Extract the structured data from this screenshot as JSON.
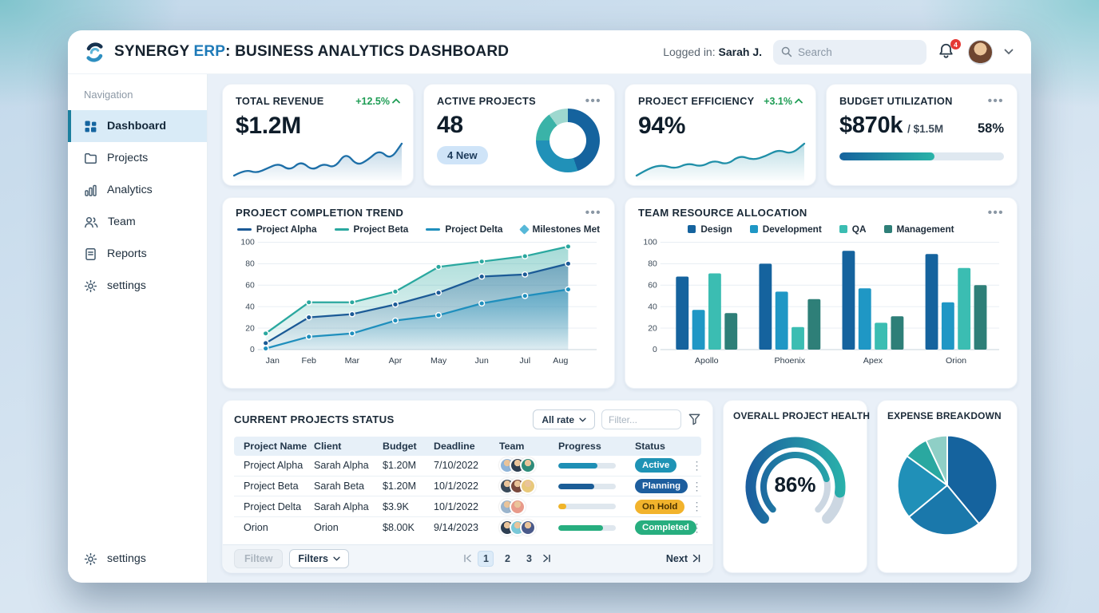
{
  "header": {
    "brand_name": "SYNERGY ",
    "brand_accent": "ERP",
    "title_suffix": ": BUSINESS ANALYTICS DASHBOARD",
    "logged_in_label": "Logged in: ",
    "user_name": "Sarah J.",
    "search_placeholder": "Search",
    "notification_count": "4",
    "accent_color": "#1e7ab8"
  },
  "sidebar": {
    "section_label": "Navigation",
    "items": [
      {
        "label": "Dashboard",
        "icon": "dashboard-grid-icon",
        "active": true
      },
      {
        "label": "Projects",
        "icon": "folder-icon",
        "active": false
      },
      {
        "label": "Analytics",
        "icon": "bar-chart-icon",
        "active": false
      },
      {
        "label": "Team",
        "icon": "people-icon",
        "active": false
      },
      {
        "label": "Reports",
        "icon": "document-icon",
        "active": false
      },
      {
        "label": "settings",
        "icon": "gear-icon",
        "active": false
      }
    ],
    "footer_item": {
      "label": "settings",
      "icon": "gear-icon"
    }
  },
  "kpis": {
    "revenue": {
      "title": "TOTAL REVENUE",
      "delta": "+12.5%",
      "value": "$1.2M"
    },
    "projects": {
      "title": "ACTIVE PROJECTS",
      "value": "48",
      "badge": "4 New"
    },
    "efficiency": {
      "title": "PROJECT EFFICIENCY",
      "delta": "+3.1%",
      "value": "94%"
    },
    "budget": {
      "title": "BUDGET UTILIZATION",
      "value": "$870k",
      "of_label": "/ $1.5M",
      "percent_label": "58%",
      "percent": 58
    }
  },
  "trend_card": {
    "title": "PROJECT COMPLETION TREND"
  },
  "team_card": {
    "title": "TEAM RESOURCE ALLOCATION"
  },
  "table": {
    "title": "CURRENT PROJECTS STATUS",
    "rate_dropdown": "All rate",
    "filter_placeholder": "Filter...",
    "columns": [
      "Project Name",
      "Client",
      "Budget",
      "Deadline",
      "Team",
      "Progress",
      "Status"
    ],
    "rows": [
      {
        "name": "Project Alpha",
        "client": "Sarah Alpha",
        "budget": "$1.20M",
        "deadline": "7/10/2022",
        "team_count": 3,
        "avatar_colors": [
          "#8fb4d8",
          "#2e3f52",
          "#2e8b7a"
        ],
        "progress": 68,
        "progress_color": "#1e8fb5",
        "status": "Active",
        "status_bg": "#1e93b5",
        "status_fg": "#ffffff"
      },
      {
        "name": "Project Beta",
        "client": "Sarah Beta",
        "budget": "$1.20M",
        "deadline": "10/1/2022",
        "team_count": 3,
        "avatar_colors": [
          "#3a4a5a",
          "#7a4a3e",
          "#e8c87a"
        ],
        "progress": 62,
        "progress_color": "#1b5d97",
        "status": "Planning",
        "status_bg": "#1d5e9e",
        "status_fg": "#ffffff"
      },
      {
        "name": "Project Delta",
        "client": "Sarah Alpha",
        "budget": "$3.9K",
        "deadline": "10/1/2022",
        "team_count": 2,
        "avatar_colors": [
          "#9ab4cc",
          "#e89a8a"
        ],
        "progress": 14,
        "progress_color": "#f0b429",
        "status": "On Hold",
        "status_bg": "#f2b32c",
        "status_fg": "#4a3200"
      },
      {
        "name": "Orion",
        "client": "Orion",
        "budget": "$8.00K",
        "deadline": "9/14/2023",
        "team_count": 3,
        "avatar_colors": [
          "#2e3f52",
          "#7ac8d8",
          "#4a5a8a"
        ],
        "progress": 78,
        "progress_color": "#27ae7f",
        "status": "Completed",
        "status_bg": "#27ae7f",
        "status_fg": "#ffffff"
      }
    ],
    "footer": {
      "disabled_button": "Filtew",
      "filters_button": "Filters",
      "pages": [
        "1",
        "2",
        "3"
      ],
      "active_page": "1",
      "next_label": "Next"
    }
  },
  "health_card": {
    "title": "OVERALL PROJECT HEALTH",
    "value": "86%"
  },
  "expense_card": {
    "title": "EXPENSE BREAKDOWN"
  },
  "chart_data": [
    {
      "id": "revenue-sparkline",
      "type": "area",
      "color": "#1d6fa8",
      "values": [
        8,
        13,
        10,
        14,
        18,
        12,
        20,
        12,
        18,
        14,
        27,
        16,
        21,
        29,
        21,
        34
      ]
    },
    {
      "id": "efficiency-sparkline",
      "type": "area",
      "color": "#1f8fa8",
      "values": [
        5,
        13,
        16,
        12,
        18,
        14,
        21,
        16,
        26,
        21,
        25,
        32,
        27,
        38
      ]
    },
    {
      "id": "active-projects-donut",
      "type": "pie",
      "donut": true,
      "slices": [
        {
          "value": 45,
          "color": "#15639e"
        },
        {
          "value": 30,
          "color": "#2191b8"
        },
        {
          "value": 15,
          "color": "#3ab3a8"
        },
        {
          "value": 10,
          "color": "#9ed8cf"
        }
      ]
    },
    {
      "id": "budget-progress",
      "type": "bar",
      "percent": 58,
      "colors": [
        "#15639e",
        "#2ab3a8"
      ],
      "track": "#dfe8f0"
    },
    {
      "id": "completion-trend",
      "type": "line",
      "title": "PROJECT COMPLETION TREND",
      "x": [
        "Jan",
        "Feb",
        "Mar",
        "Apr",
        "May",
        "Jun",
        "Jul",
        "Aug"
      ],
      "ylim": [
        0,
        100
      ],
      "yticks": [
        0,
        20,
        40,
        60,
        80,
        100
      ],
      "grid": true,
      "legend_position": "top",
      "series": [
        {
          "name": "Project Alpha",
          "color": "#1b5a96",
          "values": [
            6,
            30,
            33,
            42,
            53,
            68,
            70,
            80
          ]
        },
        {
          "name": "Project Beta",
          "color": "#2aa89f",
          "values": [
            15,
            44,
            44,
            54,
            77,
            82,
            87,
            96
          ]
        },
        {
          "name": "Project Delta",
          "color": "#1f8fbd",
          "values": [
            1,
            12,
            15,
            27,
            32,
            43,
            50,
            56
          ]
        }
      ],
      "extra_legend": {
        "name": "Milestones Met",
        "marker": "diamond",
        "color": "#57b8d8"
      }
    },
    {
      "id": "team-allocation",
      "type": "bar",
      "title": "TEAM RESOURCE ALLOCATION",
      "categories": [
        "Apollo",
        "Phoenix",
        "Apex",
        "Orion"
      ],
      "ylim": [
        0,
        100
      ],
      "yticks": [
        0,
        20,
        40,
        60,
        80,
        100
      ],
      "grid": true,
      "legend_position": "top",
      "series": [
        {
          "name": "Design",
          "color": "#15639e",
          "values": [
            68,
            80,
            92,
            89
          ]
        },
        {
          "name": "Development",
          "color": "#1f97c5",
          "values": [
            37,
            54,
            57,
            44
          ]
        },
        {
          "name": "QA",
          "color": "#3bbdb2",
          "values": [
            71,
            21,
            25,
            76
          ]
        },
        {
          "name": "Management",
          "color": "#2e7f78",
          "values": [
            34,
            47,
            31,
            60
          ]
        }
      ]
    },
    {
      "id": "health-gauge",
      "type": "gauge",
      "value": 86,
      "max": 100,
      "inner_fraction": 0.78,
      "colors": [
        "#1a5a9e",
        "#2ab5ab"
      ],
      "track": "#ccd7e2"
    },
    {
      "id": "expense-pie",
      "type": "pie",
      "title": "EXPENSE BREAKDOWN",
      "slices": [
        {
          "value": 39,
          "color": "#15639e"
        },
        {
          "value": 25,
          "color": "#1a78ab"
        },
        {
          "value": 21,
          "color": "#2090b8"
        },
        {
          "value": 8,
          "color": "#2aa8a0"
        },
        {
          "value": 7,
          "color": "#8fcfc6"
        }
      ]
    }
  ]
}
